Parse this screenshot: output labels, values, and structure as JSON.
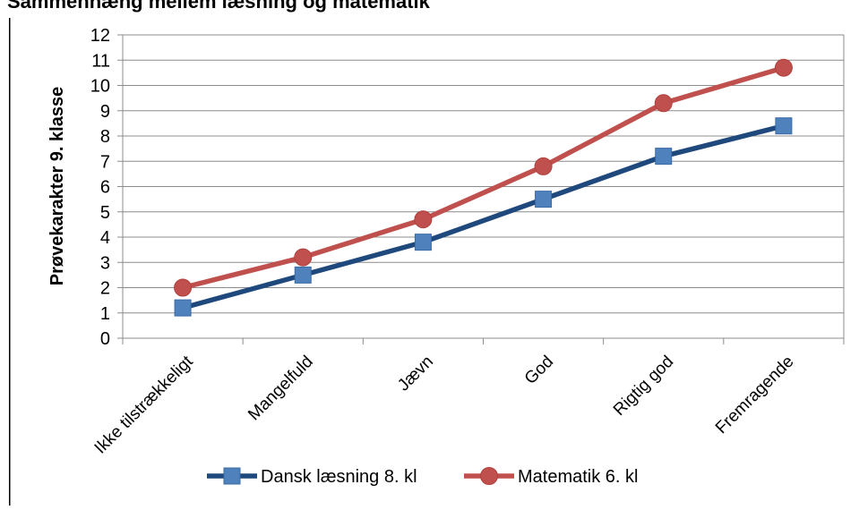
{
  "chart_data": {
    "type": "line",
    "title": "",
    "top_text_cropped": "Sammenhæng mellem læsning og matematik",
    "ylabel": "Prøvekarakter 9. klasse",
    "xlabel": "",
    "ylim": [
      0,
      12
    ],
    "yticks": [
      0,
      1,
      2,
      3,
      4,
      5,
      6,
      7,
      8,
      9,
      10,
      11,
      12
    ],
    "grid": true,
    "legend_position": "bottom",
    "categories": [
      "Ikke tilstrækkeligt",
      "Mangelfuld",
      "Jævn",
      "God",
      "Rigtig god",
      "Fremragende"
    ],
    "series": [
      {
        "name": "Dansk læsning 8. kl",
        "values": [
          1.2,
          2.5,
          3.8,
          5.5,
          7.2,
          8.4
        ],
        "color": "#1f497d",
        "marker_color": "#4f81bd",
        "marker": "square"
      },
      {
        "name": "Matematik 6. kl",
        "values": [
          2.0,
          3.2,
          4.7,
          6.8,
          9.3,
          10.7
        ],
        "color": "#c0504d",
        "marker_color": "#c0504d",
        "marker": "circle"
      }
    ]
  }
}
